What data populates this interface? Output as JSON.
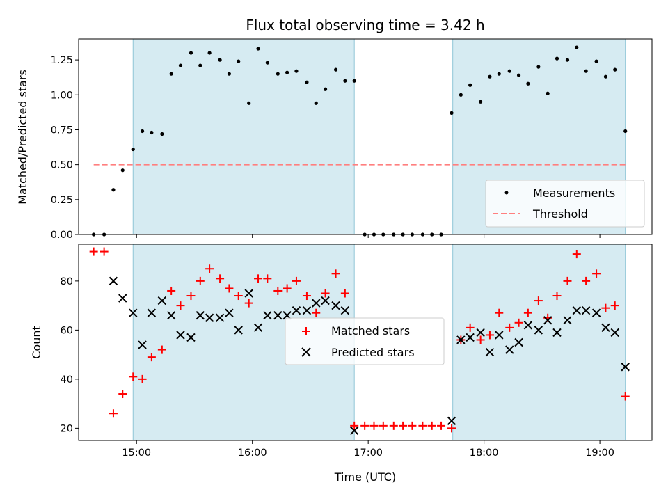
{
  "chart_data": [
    {
      "type": "scatter",
      "title": "Flux total observing time = 3.42 h",
      "ylabel": "Matched/Predicted stars",
      "xlim": [
        14.5,
        19.45
      ],
      "ylim": [
        0,
        1.4
      ],
      "x_axis": "time_hours_utc",
      "ytick_labels": [
        "0.00",
        "0.25",
        "0.50",
        "0.75",
        "1.00",
        "1.25"
      ],
      "yticks": [
        0,
        0.25,
        0.5,
        0.75,
        1.0,
        1.25
      ],
      "shaded_intervals": [
        [
          14.97,
          16.88
        ],
        [
          17.73,
          19.22
        ]
      ],
      "shade_color": "#add8e6",
      "legend_position": "lower-right",
      "series": [
        {
          "name": "Measurements",
          "marker": "dot",
          "color": "#000000",
          "x": [
            14.63,
            14.72,
            14.8,
            14.88,
            14.97,
            15.05,
            15.13,
            15.22,
            15.3,
            15.38,
            15.47,
            15.55,
            15.63,
            15.72,
            15.8,
            15.88,
            15.97,
            16.05,
            16.13,
            16.22,
            16.3,
            16.38,
            16.47,
            16.55,
            16.63,
            16.72,
            16.8,
            16.88,
            16.97,
            17.05,
            17.13,
            17.22,
            17.3,
            17.38,
            17.47,
            17.55,
            17.63,
            17.72,
            17.8,
            17.88,
            17.97,
            18.05,
            18.13,
            18.22,
            18.3,
            18.38,
            18.47,
            18.55,
            18.63,
            18.72,
            18.8,
            18.88,
            18.97,
            19.05,
            19.13,
            19.22
          ],
          "y": [
            0.0,
            0.0,
            0.32,
            0.46,
            0.61,
            0.74,
            0.73,
            0.72,
            1.15,
            1.21,
            1.3,
            1.21,
            1.3,
            1.25,
            1.15,
            1.24,
            0.94,
            1.33,
            1.23,
            1.15,
            1.16,
            1.17,
            1.09,
            0.94,
            1.04,
            1.18,
            1.1,
            1.1,
            0.0,
            0.0,
            0.0,
            0.0,
            0.0,
            0.0,
            0.0,
            0.0,
            0.0,
            0.87,
            1.0,
            1.07,
            0.95,
            1.13,
            1.15,
            1.17,
            1.14,
            1.08,
            1.2,
            1.01,
            1.26,
            1.25,
            1.34,
            1.17,
            1.24,
            1.13,
            1.18,
            0.74
          ]
        },
        {
          "name": "Threshold",
          "line": "dashed",
          "color": "#ff7f7f",
          "x": [
            14.63,
            19.22
          ],
          "y": [
            0.5,
            0.5
          ]
        }
      ]
    },
    {
      "type": "scatter",
      "xlabel": "Time (UTC)",
      "ylabel": "Count",
      "xlim": [
        14.5,
        19.45
      ],
      "ylim": [
        15,
        95
      ],
      "x_axis": "time_hours_utc",
      "xticks": [
        15,
        16,
        17,
        18,
        19
      ],
      "xtick_labels": [
        "15:00",
        "16:00",
        "17:00",
        "18:00",
        "19:00"
      ],
      "yticks": [
        20,
        40,
        60,
        80
      ],
      "ytick_labels": [
        "20",
        "40",
        "60",
        "80"
      ],
      "shaded_intervals": [
        [
          14.97,
          16.88
        ],
        [
          17.73,
          19.22
        ]
      ],
      "shade_color": "#add8e6",
      "legend_position": "center",
      "series": [
        {
          "name": "Matched stars",
          "marker": "plus",
          "color": "#ff0000",
          "x": [
            14.63,
            14.72,
            14.8,
            14.88,
            14.97,
            15.05,
            15.13,
            15.22,
            15.3,
            15.38,
            15.47,
            15.55,
            15.63,
            15.72,
            15.8,
            15.88,
            15.97,
            16.05,
            16.13,
            16.22,
            16.3,
            16.38,
            16.47,
            16.55,
            16.63,
            16.72,
            16.8,
            16.88,
            16.97,
            17.05,
            17.13,
            17.22,
            17.3,
            17.38,
            17.47,
            17.55,
            17.63,
            17.72,
            17.8,
            17.88,
            17.97,
            18.05,
            18.13,
            18.22,
            18.3,
            18.38,
            18.47,
            18.55,
            18.63,
            18.72,
            18.8,
            18.88,
            18.97,
            19.05,
            19.13,
            19.22
          ],
          "y": [
            92,
            92,
            26,
            34,
            41,
            40,
            49,
            52,
            76,
            70,
            74,
            80,
            85,
            81,
            77,
            74,
            71,
            81,
            81,
            76,
            77,
            80,
            74,
            67,
            75,
            83,
            75,
            21,
            21,
            21,
            21,
            21,
            21,
            21,
            21,
            21,
            21,
            20,
            56,
            61,
            56,
            58,
            67,
            61,
            63,
            67,
            72,
            65,
            74,
            80,
            91,
            80,
            83,
            69,
            70,
            33
          ]
        },
        {
          "name": "Predicted stars",
          "marker": "x",
          "color": "#000000",
          "x": [
            14.8,
            14.88,
            14.97,
            15.05,
            15.13,
            15.22,
            15.3,
            15.38,
            15.47,
            15.55,
            15.63,
            15.72,
            15.8,
            15.88,
            15.97,
            16.05,
            16.13,
            16.22,
            16.3,
            16.38,
            16.47,
            16.55,
            16.63,
            16.72,
            16.8,
            16.88,
            17.72,
            17.8,
            17.88,
            17.97,
            18.05,
            18.13,
            18.22,
            18.3,
            18.38,
            18.47,
            18.55,
            18.63,
            18.72,
            18.8,
            18.88,
            18.97,
            19.05,
            19.13,
            19.22
          ],
          "y": [
            80,
            73,
            67,
            54,
            67,
            72,
            66,
            58,
            57,
            66,
            65,
            65,
            67,
            60,
            75,
            61,
            66,
            66,
            66,
            68,
            68,
            71,
            72,
            70,
            68,
            19,
            23,
            56,
            57,
            59,
            51,
            58,
            52,
            55,
            62,
            60,
            64,
            59,
            64,
            68,
            68,
            67,
            61,
            59,
            45
          ]
        }
      ]
    }
  ]
}
